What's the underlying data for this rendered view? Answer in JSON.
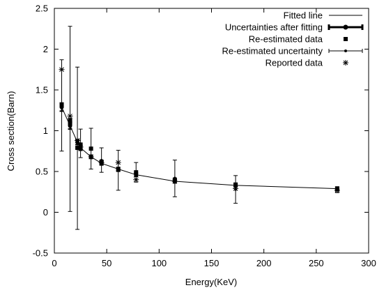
{
  "chart_data": {
    "type": "scatter",
    "xlabel": "Energy(KeV)",
    "ylabel": "Cross section(Barn)",
    "xlim": [
      0,
      300
    ],
    "ylim": [
      -0.5,
      2.5
    ],
    "x_ticks": [
      0,
      50,
      100,
      150,
      200,
      250,
      300
    ],
    "x_tick_labels": [
      "0",
      "50",
      "100",
      "150",
      "200",
      "250",
      "300"
    ],
    "y_ticks": [
      -0.5,
      0,
      0.5,
      1,
      1.5,
      2,
      2.5
    ],
    "y_tick_labels": [
      "-0.5",
      "0",
      "0.5",
      "1",
      "1.5",
      "2",
      "2.5"
    ],
    "grid": false,
    "legend_position": "top-right",
    "legend": [
      "Fitted line",
      "Uncertainties after fitting",
      "Re-estimated data",
      "Re-estimated uncertainty",
      "Reported data"
    ],
    "series": [
      {
        "name": "Fitted line",
        "style": "line",
        "x": [
          7,
          15,
          22,
          25,
          35,
          45,
          61,
          78,
          115,
          173,
          270
        ],
        "y": [
          1.29,
          1.06,
          0.86,
          0.79,
          0.68,
          0.6,
          0.53,
          0.46,
          0.38,
          0.33,
          0.29
        ]
      },
      {
        "name": "Uncertainties after fitting",
        "style": "errorbar-circle",
        "x": [
          7,
          15,
          22,
          25,
          35,
          45,
          61,
          78,
          115,
          173,
          270
        ],
        "y": [
          1.29,
          1.06,
          0.86,
          0.79,
          0.68,
          0.6,
          0.53,
          0.46,
          0.38,
          0.33,
          0.29
        ],
        "err": [
          0.05,
          0.04,
          0.03,
          0.03,
          0.02,
          0.02,
          0.02,
          0.02,
          0.02,
          0.02,
          0.02
        ]
      },
      {
        "name": "Re-estimated data",
        "style": "square",
        "x": [
          7,
          15,
          15,
          22,
          25,
          35,
          45,
          61,
          78,
          115,
          173,
          270
        ],
        "y": [
          1.31,
          1.13,
          1.09,
          0.79,
          0.83,
          0.78,
          0.62,
          0.52,
          0.49,
          0.4,
          0.34,
          0.28
        ]
      },
      {
        "name": "Re-estimated uncertainty",
        "style": "errorbar-point",
        "x": [
          7,
          15,
          22,
          25,
          35,
          45,
          61,
          78,
          115,
          173,
          270
        ],
        "y": [
          1.31,
          1.14,
          0.78,
          0.84,
          0.78,
          0.64,
          0.52,
          0.49,
          0.42,
          0.28,
          0.28
        ],
        "ylow": [
          0.75,
          0.01,
          -0.21,
          0.67,
          0.53,
          0.49,
          0.27,
          0.37,
          0.19,
          0.11,
          0.24
        ],
        "yhigh": [
          1.87,
          2.28,
          1.78,
          1.02,
          1.03,
          0.79,
          0.76,
          0.61,
          0.64,
          0.45,
          0.31
        ]
      },
      {
        "name": "Reported data",
        "style": "star",
        "x": [
          7,
          15,
          22,
          25,
          35,
          45,
          61,
          78,
          115,
          173,
          270
        ],
        "y": [
          1.75,
          1.18,
          0.88,
          0.8,
          0.68,
          0.61,
          0.61,
          0.4,
          0.38,
          0.29,
          0.27
        ]
      }
    ]
  }
}
